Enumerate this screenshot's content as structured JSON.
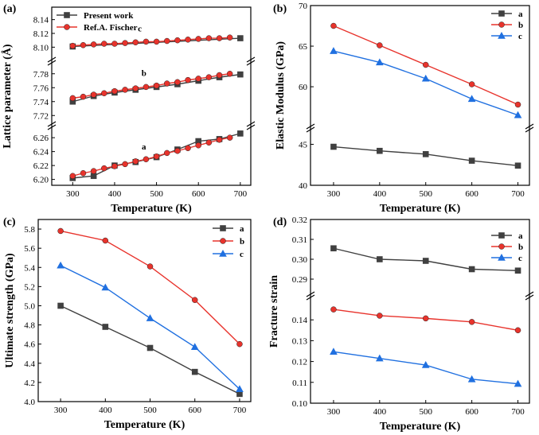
{
  "chart_data": [
    {
      "panel": "(a)",
      "type": "line",
      "xlabel": "Temperature (K)",
      "ylabel": "Lattice parameter (Å)",
      "xlim": [
        250,
        725
      ],
      "xticks": [
        300,
        400,
        500,
        600,
        700
      ],
      "legend": [
        "Present work",
        "Ref.A. Fischer"
      ],
      "segments": [
        {
          "label": "c",
          "ylim": [
            8.09,
            8.15
          ],
          "yticks": [
            8.1,
            8.12,
            8.14
          ],
          "ytick_labels": [
            "8.10",
            "8.12",
            "8.14"
          ],
          "series": [
            {
              "name": "Present work",
              "color": "#404040",
              "marker": "square",
              "x": [
                300,
                700
              ],
              "y": [
                8.101,
                8.113
              ]
            },
            {
              "name": "Ref.A. Fischer",
              "color": "#e8332c",
              "marker": "circle",
              "x": [
                300,
                325,
                350,
                375,
                400,
                425,
                450,
                475,
                500,
                525,
                550,
                575,
                600,
                625,
                650,
                675
              ],
              "y": [
                8.102,
                8.103,
                8.104,
                8.105,
                8.105,
                8.106,
                8.107,
                8.108,
                8.108,
                8.109,
                8.11,
                8.111,
                8.112,
                8.113,
                8.113,
                8.114
              ]
            }
          ]
        },
        {
          "label": "b",
          "ylim": [
            7.71,
            7.79
          ],
          "yticks": [
            7.72,
            7.74,
            7.76,
            7.78
          ],
          "ytick_labels": [
            "7.72",
            "7.74",
            "7.76",
            "7.78"
          ],
          "series": [
            {
              "name": "Present work",
              "color": "#404040",
              "marker": "square",
              "x": [
                300,
                350,
                400,
                450,
                500,
                550,
                600,
                650,
                700
              ],
              "y": [
                7.74,
                7.748,
                7.753,
                7.757,
                7.761,
                7.765,
                7.77,
                7.775,
                7.779
              ]
            },
            {
              "name": "Ref.A. Fischer",
              "color": "#e8332c",
              "marker": "circle",
              "x": [
                300,
                325,
                350,
                375,
                400,
                425,
                450,
                475,
                500,
                525,
                550,
                575,
                600,
                625,
                650,
                675
              ],
              "y": [
                7.745,
                7.747,
                7.75,
                7.752,
                7.755,
                7.757,
                7.759,
                7.761,
                7.763,
                7.766,
                7.768,
                7.771,
                7.773,
                7.775,
                7.778,
                7.78
              ]
            }
          ]
        },
        {
          "label": "a",
          "ylim": [
            6.195,
            6.275
          ],
          "yticks": [
            6.2,
            6.22,
            6.24,
            6.26
          ],
          "ytick_labels": [
            "6.20",
            "6.22",
            "6.24",
            "6.26"
          ],
          "series": [
            {
              "name": "Present work",
              "color": "#404040",
              "marker": "square",
              "x": [
                300,
                350,
                400,
                450,
                500,
                550,
                600,
                650,
                700
              ],
              "y": [
                6.202,
                6.205,
                6.22,
                6.225,
                6.232,
                6.243,
                6.255,
                6.258,
                6.266
              ]
            },
            {
              "name": "Ref.A. Fischer",
              "color": "#e8332c",
              "marker": "circle",
              "x": [
                300,
                325,
                350,
                375,
                400,
                425,
                450,
                475,
                500,
                525,
                550,
                575,
                600,
                625,
                650,
                675
              ],
              "y": [
                6.205,
                6.209,
                6.212,
                6.216,
                6.219,
                6.222,
                6.226,
                6.229,
                6.233,
                6.238,
                6.241,
                6.245,
                6.249,
                6.253,
                6.257,
                6.26
              ]
            }
          ]
        }
      ]
    },
    {
      "panel": "(b)",
      "type": "line",
      "xlabel": "Temperature (K)",
      "ylabel": "Elastic Modulus (GPa)",
      "xlim": [
        250,
        725
      ],
      "xticks": [
        300,
        400,
        500,
        600,
        700
      ],
      "legend": [
        "a",
        "b",
        "c"
      ],
      "breaks": [
        {
          "ylim": [
            55.5,
            70
          ],
          "yticks": [
            60,
            65,
            70
          ],
          "ytick_labels": [
            "60",
            "65",
            "70"
          ]
        },
        {
          "ylim": [
            40,
            46.5
          ],
          "yticks": [
            40,
            45
          ],
          "ytick_labels": [
            "40",
            "45"
          ]
        }
      ],
      "x": [
        300,
        400,
        500,
        600,
        700
      ],
      "series": [
        {
          "name": "a",
          "color": "#404040",
          "marker": "square",
          "values": [
            44.7,
            44.2,
            43.8,
            43.0,
            42.4
          ]
        },
        {
          "name": "b",
          "color": "#e8332c",
          "marker": "circle",
          "values": [
            67.5,
            65.1,
            62.7,
            60.3,
            57.8
          ]
        },
        {
          "name": "c",
          "color": "#2070e0",
          "marker": "triangle",
          "values": [
            64.4,
            63.0,
            61.0,
            58.5,
            56.5
          ]
        }
      ]
    },
    {
      "panel": "(c)",
      "type": "line",
      "xlabel": "Temperature (K)",
      "ylabel": "Ultimate strength (GPa)",
      "xlim": [
        250,
        725
      ],
      "ylim": [
        4.0,
        5.9
      ],
      "xticks": [
        300,
        400,
        500,
        600,
        700
      ],
      "yticks": [
        4.0,
        4.2,
        4.4,
        4.6,
        4.8,
        5.0,
        5.2,
        5.4,
        5.6,
        5.8
      ],
      "ytick_labels": [
        "4.0",
        "4.2",
        "4.4",
        "4.6",
        "4.8",
        "5.0",
        "5.2",
        "5.4",
        "5.6",
        "5.8"
      ],
      "legend": [
        "a",
        "b",
        "c"
      ],
      "x": [
        300,
        400,
        500,
        600,
        700
      ],
      "series": [
        {
          "name": "a",
          "color": "#404040",
          "marker": "square",
          "values": [
            5.0,
            4.78,
            4.56,
            4.31,
            4.08
          ]
        },
        {
          "name": "b",
          "color": "#e8332c",
          "marker": "circle",
          "values": [
            5.78,
            5.68,
            5.41,
            5.06,
            4.6
          ]
        },
        {
          "name": "c",
          "color": "#2070e0",
          "marker": "triangle",
          "values": [
            5.42,
            5.19,
            4.87,
            4.57,
            4.13
          ]
        }
      ]
    },
    {
      "panel": "(d)",
      "type": "line",
      "xlabel": "Temperature (K)",
      "ylabel": "Fracture strain",
      "xlim": [
        250,
        725
      ],
      "xticks": [
        300,
        400,
        500,
        600,
        700
      ],
      "legend": [
        "a",
        "b",
        "c"
      ],
      "breaks": [
        {
          "ylim": [
            0.284,
            0.32
          ],
          "yticks": [
            0.29,
            0.3,
            0.31,
            0.32
          ],
          "ytick_labels": [
            "0.29",
            "0.30",
            "0.31",
            "0.32"
          ]
        },
        {
          "ylim": [
            0.1,
            0.15
          ],
          "yticks": [
            0.1,
            0.11,
            0.12,
            0.13,
            0.14
          ],
          "ytick_labels": [
            "0.10",
            "0.11",
            "0.12",
            "0.13",
            "0.14"
          ]
        }
      ],
      "x": [
        300,
        400,
        500,
        600,
        700
      ],
      "series": [
        {
          "name": "a",
          "color": "#404040",
          "marker": "square",
          "values": [
            0.3055,
            0.3,
            0.2992,
            0.295,
            0.2943
          ]
        },
        {
          "name": "b",
          "color": "#e8332c",
          "marker": "circle",
          "values": [
            0.145,
            0.142,
            0.1407,
            0.139,
            0.135
          ]
        },
        {
          "name": "c",
          "color": "#2070e0",
          "marker": "triangle",
          "values": [
            0.1247,
            0.1215,
            0.1183,
            0.1115,
            0.1093
          ]
        }
      ]
    }
  ]
}
